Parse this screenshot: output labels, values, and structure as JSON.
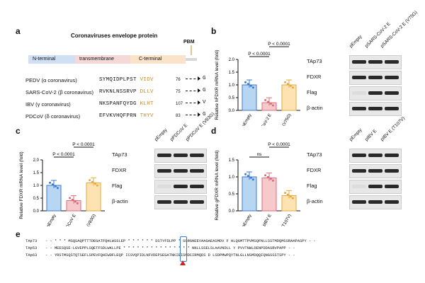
{
  "panels": {
    "a": "a",
    "b": "b",
    "c": "c",
    "d": "d",
    "e": "e"
  },
  "panel_a": {
    "title": "Coronaviruses envelope protein",
    "domains": {
      "n": "N-terminal",
      "tm": "transmembrane",
      "c": "C-terminal",
      "pbm": "PBM"
    },
    "rows": [
      {
        "label": "PEDV (α coronavirus)",
        "seq": "SYMQIDPLPST",
        "motif": "VIDV",
        "num": "76",
        "mut": "G"
      },
      {
        "label": "SARS-CoV-2 (β coronavirus)",
        "seq": "RVKNLNSSRVP",
        "motif": "DLLV",
        "num": "75",
        "mut": "G"
      },
      {
        "label": "IBV (γ coronavirus)",
        "seq": "NKSPANFQYDG",
        "motif": "KLHT",
        "num": "107",
        "mut": "V"
      },
      {
        "label": "PDCoV (δ coronavirus)",
        "seq": "EFVKVHQFPRN",
        "motif": "THYV",
        "num": "83",
        "mut": "G"
      }
    ]
  },
  "charts": {
    "b": {
      "ylabel": "Relative hFDXR mRNA level (fold)",
      "yticks": [
        "0.0",
        "0.5",
        "1.0",
        "1.5",
        "2.0"
      ],
      "categories": [
        "pEmpty",
        "pSARS-CoV-2 E",
        "pSARS-CoV-2 E (V75G)"
      ],
      "sig": [
        "P < 0.0001",
        "P < 0.0001"
      ]
    },
    "c": {
      "ylabel": "Relative FDXR mRNA level (fold)",
      "yticks": [
        "0.0",
        "0.5",
        "1.0",
        "1.5",
        "2.0"
      ],
      "categories": [
        "pEmpty",
        "pPDCoV E",
        "pPDCoV E (V83G)"
      ],
      "sig": [
        "P < 0.0001",
        "P < 0.0001"
      ]
    },
    "d": {
      "ylabel": "Relative gFDXR mRNA level (fold)",
      "yticks": [
        "0.0",
        "0.5",
        "1.0",
        "1.5"
      ],
      "categories": [
        "pEmpty",
        "pIBV E",
        "pIBV E (T107V)"
      ],
      "sig": [
        "ns",
        "P < 0.0001"
      ]
    }
  },
  "chart_data": [
    {
      "type": "bar",
      "title": "b",
      "ylabel": "Relative hFDXR mRNA level (fold)",
      "categories": [
        "pEmpty",
        "pSARS-CoV-2 E",
        "pSARS-CoV-2 E (V75G)"
      ],
      "values": [
        1.0,
        0.3,
        1.0
      ],
      "ylim": [
        0,
        2.0
      ],
      "colors": [
        "#b8d5f2",
        "#f6c9cd",
        "#fde2b2"
      ]
    },
    {
      "type": "bar",
      "title": "c",
      "ylabel": "Relative FDXR mRNA level (fold)",
      "categories": [
        "pEmpty",
        "pPDCoV E",
        "pPDCoV E (V83G)"
      ],
      "values": [
        1.0,
        0.4,
        1.1
      ],
      "ylim": [
        0,
        2.0
      ],
      "colors": [
        "#b8d5f2",
        "#f6c9cd",
        "#fde2b2"
      ]
    },
    {
      "type": "bar",
      "title": "d",
      "ylabel": "Relative gFDXR mRNA level (fold)",
      "categories": [
        "pEmpty",
        "pIBV E",
        "pIBV E (T107V)"
      ],
      "values": [
        1.0,
        0.97,
        0.45
      ],
      "ylim": [
        0,
        1.5
      ],
      "colors": [
        "#b8d5f2",
        "#f6c9cd",
        "#fde2b2"
      ]
    }
  ],
  "blots": {
    "b": {
      "lanes": [
        "pEmpty",
        "pSARS-CoV-2 E",
        "pSARS-CoV-2 E (V75G)"
      ],
      "rows": [
        "TAp73",
        "FDXR",
        "Flag",
        "β-actin"
      ]
    },
    "c": {
      "lanes": [
        "pEmpty",
        "pPDCoV E",
        "pPDCoV E (V83G)"
      ],
      "rows": [
        "TAp73",
        "FDXR",
        "Flag",
        "β-actin"
      ]
    },
    "d": {
      "lanes": [
        "pEmpty",
        "pIBV E",
        "pIBV E (T107V)"
      ],
      "rows": [
        "TAp73",
        "FDXR",
        "Flag",
        "β-actin"
      ]
    }
  },
  "panel_e": {
    "rows": [
      {
        "label": "TAp73",
        "seq": "- - * * * MSQSAQPTTTDEGATFQHLWSSLEP * * * * * * DSTYFDLPP * SGRGNEEVAAGAEASMDV F HLQGMTTPVMSQFNLLSSTMDQMSSRAAPASPY - -"
      },
      {
        "label": "TAp53",
        "seq": "- - MEESQSE-LGVEPPLSQETFSDLWKLLPE * * * * * * * * * * * * * * * NNLLSSELSLAAVNDLL Y PVVTNWLDENPDDASRVPAPP - -"
      },
      {
        "label": "TAp63",
        "seq": "- - YRSTMSQSTQTSEFLSPEVFQHIWDFLEQP ICSVQPIDLNFVDEPSEGATNKIEISMDCIRMQDS D LSDPMWPQYTNLGLLNSMDQQIQNGSSSTSPY - -"
      }
    ]
  }
}
